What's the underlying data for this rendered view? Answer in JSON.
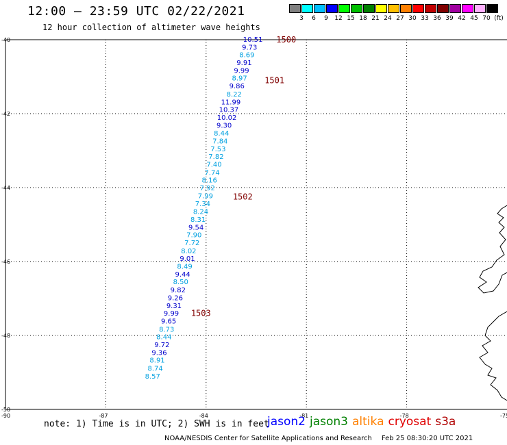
{
  "title": "12:00 — 23:59 UTC 02/22/2021",
  "subtitle": "12 hour collection of altimeter wave heights",
  "colorbar": {
    "unit": "(ft)",
    "labels": [
      "3",
      "6",
      "9",
      "12",
      "15",
      "18",
      "21",
      "24",
      "27",
      "30",
      "33",
      "36",
      "39",
      "42",
      "45",
      "70"
    ],
    "colors": [
      "#808080",
      "#00ffff",
      "#00bfff",
      "#0000ff",
      "#00ff00",
      "#00c000",
      "#008000",
      "#ffff00",
      "#ffc000",
      "#ff8000",
      "#ff0000",
      "#c00000",
      "#800000",
      "#a000a0",
      "#ff00ff",
      "#ffb0ff",
      "#000000"
    ]
  },
  "map": {
    "lat_ticks": [
      "-40",
      "-42",
      "-44",
      "-46",
      "-48",
      "-50"
    ],
    "lon_ticks": [
      "-90",
      "-87",
      "-84",
      "-81",
      "-78",
      "-75"
    ]
  },
  "track_points": [
    {
      "v": "10.51",
      "lon": -82.6,
      "lat": -40.0,
      "color": "#0000cc"
    },
    {
      "v": "9.73",
      "lon": -82.7,
      "lat": -40.21,
      "color": "#0000cc"
    },
    {
      "v": "8.69",
      "lon": -82.78,
      "lat": -40.42,
      "color": "#00a0e0"
    },
    {
      "v": "9.91",
      "lon": -82.86,
      "lat": -40.63,
      "color": "#0000cc"
    },
    {
      "v": "9.99",
      "lon": -82.94,
      "lat": -40.84,
      "color": "#0000cc"
    },
    {
      "v": "8.97",
      "lon": -83.0,
      "lat": -41.05,
      "color": "#00a0e0"
    },
    {
      "v": "9.86",
      "lon": -83.08,
      "lat": -41.26,
      "color": "#0000cc"
    },
    {
      "v": "8.22",
      "lon": -83.16,
      "lat": -41.48,
      "color": "#00a0e0"
    },
    {
      "v": "11.99",
      "lon": -83.26,
      "lat": -41.69,
      "color": "#0000cc"
    },
    {
      "v": "10.37",
      "lon": -83.32,
      "lat": -41.9,
      "color": "#0000cc"
    },
    {
      "v": "10.02",
      "lon": -83.38,
      "lat": -42.11,
      "color": "#0000cc"
    },
    {
      "v": "9.30",
      "lon": -83.46,
      "lat": -42.32,
      "color": "#0000cc"
    },
    {
      "v": "8.44",
      "lon": -83.54,
      "lat": -42.54,
      "color": "#00a0e0"
    },
    {
      "v": "7.84",
      "lon": -83.58,
      "lat": -42.75,
      "color": "#00a0e0"
    },
    {
      "v": "7.53",
      "lon": -83.64,
      "lat": -42.96,
      "color": "#00a0e0"
    },
    {
      "v": "7.82",
      "lon": -83.7,
      "lat": -43.17,
      "color": "#00a0e0"
    },
    {
      "v": "7.40",
      "lon": -83.76,
      "lat": -43.38,
      "color": "#00a0e0"
    },
    {
      "v": "7.74",
      "lon": -83.82,
      "lat": -43.6,
      "color": "#00a0e0"
    },
    {
      "v": "8.16",
      "lon": -83.9,
      "lat": -43.81,
      "color": "#00a0e0"
    },
    {
      "v": "7.92",
      "lon": -83.96,
      "lat": -44.02,
      "color": "#00a0e0"
    },
    {
      "v": "7.99",
      "lon": -84.02,
      "lat": -44.23,
      "color": "#00a0e0"
    },
    {
      "v": "7.34",
      "lon": -84.1,
      "lat": -44.44,
      "color": "#00a0e0"
    },
    {
      "v": "8.24",
      "lon": -84.16,
      "lat": -44.66,
      "color": "#00a0e0"
    },
    {
      "v": "8.31",
      "lon": -84.24,
      "lat": -44.87,
      "color": "#00a0e0"
    },
    {
      "v": "9.54",
      "lon": -84.3,
      "lat": -45.08,
      "color": "#0000cc"
    },
    {
      "v": "7.90",
      "lon": -84.36,
      "lat": -45.29,
      "color": "#00a0e0"
    },
    {
      "v": "7.72",
      "lon": -84.42,
      "lat": -45.5,
      "color": "#00a0e0"
    },
    {
      "v": "8.02",
      "lon": -84.52,
      "lat": -45.72,
      "color": "#00a0e0"
    },
    {
      "v": "9.01",
      "lon": -84.56,
      "lat": -45.93,
      "color": "#0000cc"
    },
    {
      "v": "8.49",
      "lon": -84.64,
      "lat": -46.14,
      "color": "#00a0e0"
    },
    {
      "v": "9.44",
      "lon": -84.7,
      "lat": -46.35,
      "color": "#0000cc"
    },
    {
      "v": "8.50",
      "lon": -84.76,
      "lat": -46.56,
      "color": "#00a0e0"
    },
    {
      "v": "9.82",
      "lon": -84.84,
      "lat": -46.78,
      "color": "#0000cc"
    },
    {
      "v": "9.26",
      "lon": -84.92,
      "lat": -46.99,
      "color": "#0000cc"
    },
    {
      "v": "9.31",
      "lon": -84.96,
      "lat": -47.2,
      "color": "#0000cc"
    },
    {
      "v": "9.99",
      "lon": -85.04,
      "lat": -47.41,
      "color": "#0000cc"
    },
    {
      "v": "9.65",
      "lon": -85.12,
      "lat": -47.62,
      "color": "#0000cc"
    },
    {
      "v": "8.73",
      "lon": -85.18,
      "lat": -47.84,
      "color": "#00a0e0"
    },
    {
      "v": "8.44",
      "lon": -85.26,
      "lat": -48.05,
      "color": "#00a0e0"
    },
    {
      "v": "9.72",
      "lon": -85.32,
      "lat": -48.26,
      "color": "#0000cc"
    },
    {
      "v": "9.36",
      "lon": -85.4,
      "lat": -48.47,
      "color": "#0000cc"
    },
    {
      "v": "8.91",
      "lon": -85.46,
      "lat": -48.68,
      "color": "#00a0e0"
    },
    {
      "v": "8.74",
      "lon": -85.52,
      "lat": -48.9,
      "color": "#00a0e0"
    },
    {
      "v": "8.57",
      "lon": -85.6,
      "lat": -49.11,
      "color": "#00a0e0"
    }
  ],
  "time_labels": [
    {
      "t": "1500",
      "lon": -81.9,
      "lat": -40.0
    },
    {
      "t": "1501",
      "lon": -82.25,
      "lat": -41.1
    },
    {
      "t": "1502",
      "lon": -83.2,
      "lat": -44.25
    },
    {
      "t": "1503",
      "lon": -84.45,
      "lat": -47.4
    }
  ],
  "note": "note: 1) Time is in UTC; 2) SWH is in feet",
  "satellites": [
    {
      "name": "jason2",
      "color": "#0000ff"
    },
    {
      "name": "jason3",
      "color": "#008000"
    },
    {
      "name": "altika",
      "color": "#ff8000"
    },
    {
      "name": "cryosat",
      "color": "#e00000"
    },
    {
      "name": "s3a",
      "color": "#b00000"
    }
  ],
  "credit": "NOAA/NESDIS Center for Satellite Applications and Research",
  "timestamp": "Feb 25 08:30:20 UTC 2021",
  "colors": {
    "time_label": "#800000",
    "grid": "#000000"
  }
}
